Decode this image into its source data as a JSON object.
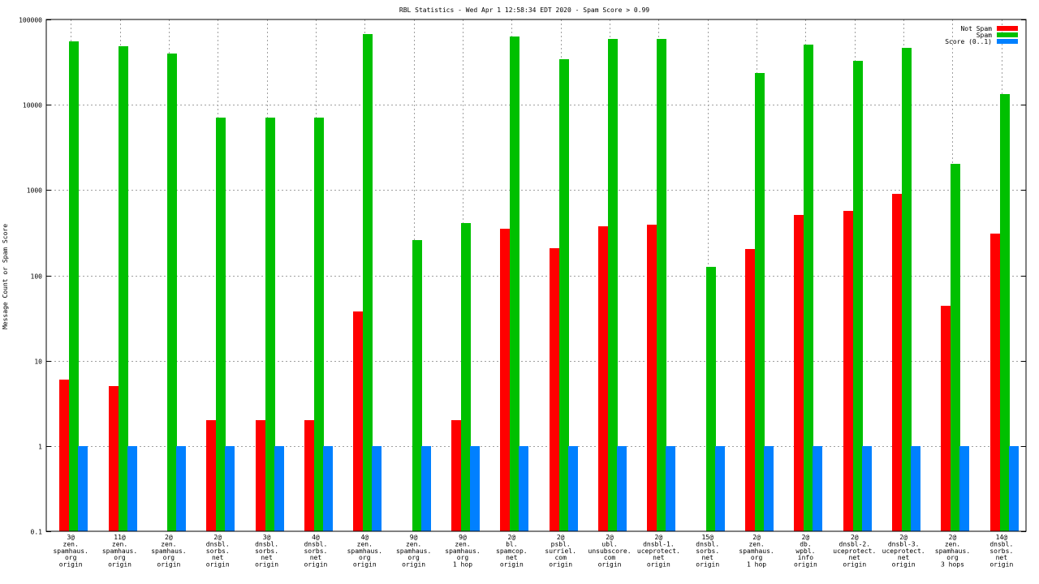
{
  "chart_data": {
    "type": "bar",
    "title": "RBL Statistics - Wed Apr  1 12:58:34 EDT 2020 - Spam Score > 0.99",
    "ylabel": "Message Count or Spam Score",
    "xlabel": "",
    "yscale": "log",
    "ylim": [
      0.1,
      100000
    ],
    "yticks": [
      "0.1",
      "1",
      "10",
      "100",
      "1000",
      "10000",
      "100000"
    ],
    "ytick_values": [
      0.1,
      1,
      10,
      100,
      1000,
      10000,
      100000
    ],
    "grid": true,
    "legend_position": "top-right",
    "categories": [
      [
        "3@",
        "zen.",
        "spamhaus.",
        "org",
        "origin"
      ],
      [
        "11@",
        "zen.",
        "spamhaus.",
        "org",
        "origin"
      ],
      [
        "2@",
        "zen.",
        "spamhaus.",
        "org",
        "origin"
      ],
      [
        "2@",
        "dnsbl.",
        "sorbs.",
        "net",
        "origin"
      ],
      [
        "3@",
        "dnsbl.",
        "sorbs.",
        "net",
        "origin"
      ],
      [
        "4@",
        "dnsbl.",
        "sorbs.",
        "net",
        "origin"
      ],
      [
        "4@",
        "zen.",
        "spamhaus.",
        "org",
        "origin"
      ],
      [
        "9@",
        "zen.",
        "spamhaus.",
        "org",
        "origin"
      ],
      [
        "9@",
        "zen.",
        "spamhaus.",
        "org",
        "1 hop"
      ],
      [
        "2@",
        "bl.",
        "spamcop.",
        "net",
        "origin"
      ],
      [
        "2@",
        "psbl.",
        "surriel.",
        "com",
        "origin"
      ],
      [
        "2@",
        "ubl.",
        "unsubscore.",
        "com",
        "origin"
      ],
      [
        "2@",
        "dnsbl-1.",
        "uceprotect.",
        "net",
        "origin"
      ],
      [
        "15@",
        "dnsbl.",
        "sorbs.",
        "net",
        "origin"
      ],
      [
        "2@",
        "zen.",
        "spamhaus.",
        "org",
        "1 hop"
      ],
      [
        "2@",
        "db.",
        "wpbl.",
        "info",
        "origin"
      ],
      [
        "2@",
        "dnsbl-2.",
        "uceprotect.",
        "net",
        "origin"
      ],
      [
        "2@",
        "dnsbl-3.",
        "uceprotect.",
        "net",
        "origin"
      ],
      [
        "2@",
        "zen.",
        "spamhaus.",
        "org",
        "3 hops"
      ],
      [
        "14@",
        "dnsbl.",
        "sorbs.",
        "net",
        "origin"
      ]
    ],
    "series": [
      {
        "name": "Not Spam",
        "color": "#ff0000",
        "values": [
          6,
          5,
          null,
          2,
          2,
          2,
          38,
          null,
          2,
          350,
          210,
          375,
          390,
          null,
          205,
          510,
          570,
          900,
          44,
          310
        ]
      },
      {
        "name": "Spam",
        "color": "#00c000",
        "values": [
          55000,
          49000,
          40000,
          7000,
          7000,
          7000,
          68000,
          260,
          410,
          63000,
          34000,
          59000,
          59000,
          125,
          23500,
          51000,
          33000,
          46000,
          2050,
          13400
        ]
      },
      {
        "name": "Score (0..1)",
        "color": "#0080ff",
        "values": [
          1,
          1,
          1,
          1,
          1,
          1,
          1,
          1,
          1,
          1,
          1,
          1,
          1,
          1,
          1,
          1,
          1,
          1,
          1,
          1
        ]
      }
    ]
  }
}
